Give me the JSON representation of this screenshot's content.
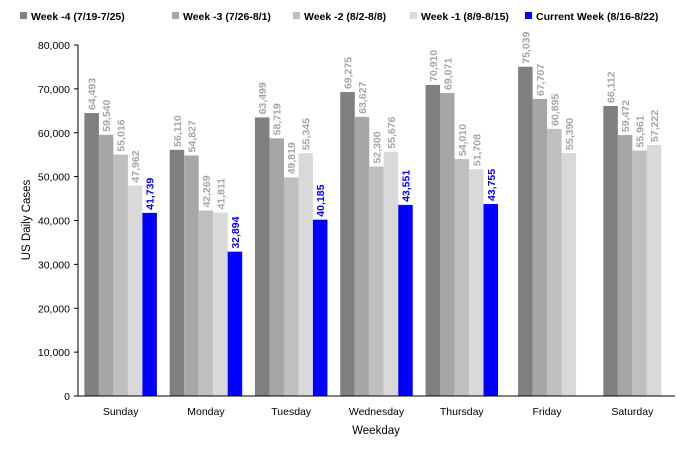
{
  "chart_data": {
    "type": "bar",
    "xlabel": "Weekday",
    "ylabel": "US Daily Cases",
    "ylim": [
      0,
      80000
    ],
    "yticks": [
      0,
      10000,
      20000,
      30000,
      40000,
      50000,
      60000,
      70000,
      80000
    ],
    "ytick_labels": [
      "0",
      "10,000",
      "20,000",
      "30,000",
      "40,000",
      "50,000",
      "60,000",
      "70,000",
      "80,000"
    ],
    "grid": false,
    "legend_position": "top",
    "categories": [
      "Sunday",
      "Monday",
      "Tuesday",
      "Wednesday",
      "Thursday",
      "Friday",
      "Saturday"
    ],
    "series": [
      {
        "name": "Week -4 (7/19-7/25)",
        "color": "#7f7f7f",
        "label_color": "#a6a6a6",
        "values": [
          64493,
          56110,
          63499,
          69275,
          70910,
          75039,
          66112
        ],
        "labels": [
          "64,493",
          "56,110",
          "63,499",
          "69,275",
          "70,910",
          "75,039",
          "66,112"
        ]
      },
      {
        "name": "Week -3 (7/26-8/1)",
        "color": "#a6a6a6",
        "label_color": "#a6a6a6",
        "values": [
          59540,
          54827,
          58719,
          63627,
          69071,
          67707,
          59472
        ],
        "labels": [
          "59,540",
          "54,827",
          "58,719",
          "63,627",
          "69,071",
          "67,707",
          "59,472"
        ]
      },
      {
        "name": "Week -2 (8/2-8/8)",
        "color": "#bfbfbf",
        "label_color": "#a6a6a6",
        "values": [
          55016,
          42269,
          49819,
          52300,
          54010,
          60895,
          55961
        ],
        "labels": [
          "55,016",
          "42,269",
          "49,819",
          "52,300",
          "54,010",
          "60,895",
          "55,961"
        ]
      },
      {
        "name": "Week -1 (8/9-8/15)",
        "color": "#d9d9d9",
        "label_color": "#a6a6a6",
        "values": [
          47962,
          41811,
          55345,
          55676,
          51708,
          55390,
          57222
        ],
        "labels": [
          "47,962",
          "41,811",
          "55,345",
          "55,676",
          "51,708",
          "55,390",
          "57,222"
        ]
      },
      {
        "name": "Current Week (8/16-8/22)",
        "color": "#0000ff",
        "label_color": "#0000ff",
        "values": [
          41739,
          32894,
          40185,
          43551,
          43755,
          null,
          null
        ],
        "labels": [
          "41,739",
          "32,894",
          "40,185",
          "43,551",
          "43,755",
          null,
          null
        ]
      }
    ]
  }
}
